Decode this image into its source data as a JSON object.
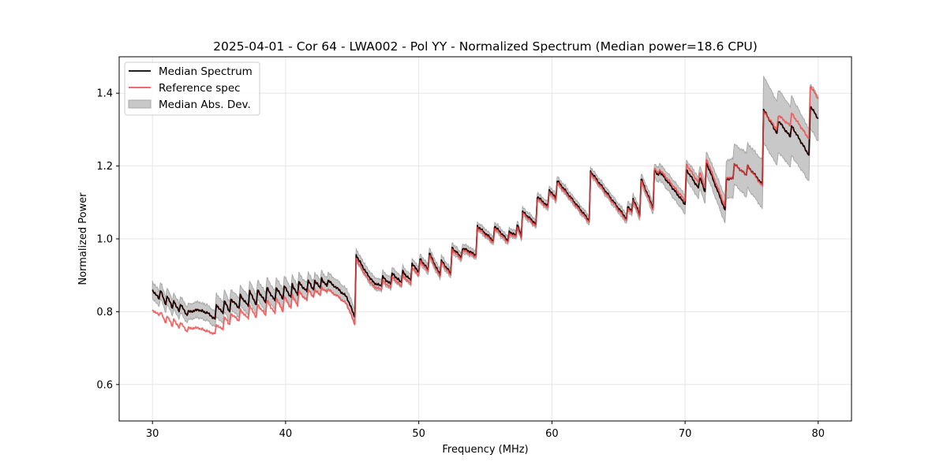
{
  "chart_data": {
    "type": "line",
    "title": "2025-04-01 - Cor 64 - LWA002 - Pol YY - Normalized Spectrum (Median power=18.6 CPU)",
    "xlabel": "Frequency (MHz)",
    "ylabel": "Normalized Power",
    "xlim": [
      27.5,
      82.5
    ],
    "ylim": [
      0.5,
      1.5
    ],
    "xticks": [
      30,
      40,
      50,
      60,
      70,
      80
    ],
    "xtick_labels": [
      "30",
      "40",
      "50",
      "60",
      "70",
      "80"
    ],
    "yticks": [
      0.6,
      0.8,
      1.0,
      1.2,
      1.4
    ],
    "ytick_labels": [
      "0.6",
      "0.8",
      "1.0",
      "1.2",
      "1.4"
    ],
    "grid": true,
    "legend_position": "top-left",
    "legend": [
      {
        "label": "Median Spectrum",
        "type": "line",
        "color": "#000000"
      },
      {
        "label": "Reference spec",
        "type": "line",
        "color": "#ee5555"
      },
      {
        "label": "Median Abs. Dev.",
        "type": "band",
        "color": "#c8c8c8"
      }
    ],
    "colors": {
      "median": "#000000",
      "reference": "#ee5555",
      "mad_fill": "#c8c8c8",
      "mad_edge": "#a8a8a8",
      "overlap": "#8b0000"
    },
    "series": [
      {
        "name": "Median Spectrum",
        "x": [
          30.0,
          30.5,
          30.6,
          31.0,
          31.1,
          31.5,
          31.6,
          32.0,
          32.1,
          32.6,
          32.7,
          33.5,
          34.2,
          34.7,
          34.8,
          35.3,
          35.4,
          35.8,
          35.9,
          36.5,
          36.6,
          37.2,
          37.3,
          37.8,
          37.9,
          38.5,
          38.6,
          39.2,
          39.3,
          39.8,
          39.9,
          40.4,
          40.5,
          40.9,
          41.0,
          41.6,
          41.7,
          42.1,
          42.2,
          42.6,
          42.7,
          43.1,
          43.2,
          44.0,
          44.6,
          45.2,
          45.3,
          46.0,
          46.6,
          47.2,
          47.3,
          47.9,
          48.0,
          48.7,
          48.8,
          49.4,
          49.5,
          50.0,
          50.1,
          50.7,
          50.8,
          51.6,
          51.7,
          52.4,
          52.5,
          53.2,
          53.3,
          54.3,
          54.4,
          55.6,
          55.7,
          56.7,
          56.8,
          57.3,
          57.4,
          57.7,
          57.8,
          58.8,
          58.9,
          59.7,
          59.8,
          60.3,
          60.4,
          62.8,
          62.9,
          65.6,
          65.7,
          66.0,
          66.1,
          66.6,
          66.7,
          67.6,
          67.7,
          68.0,
          68.1,
          70.0,
          70.1,
          71.0,
          71.1,
          71.5,
          71.6,
          73.0,
          73.1,
          73.6,
          73.7,
          74.6,
          74.7,
          75.8,
          75.9,
          76.9,
          77.0,
          77.9,
          78.0,
          79.3,
          79.4,
          80.0
        ],
        "values": [
          0.86,
          0.835,
          0.86,
          0.82,
          0.845,
          0.81,
          0.83,
          0.8,
          0.82,
          0.79,
          0.8,
          0.805,
          0.795,
          0.78,
          0.82,
          0.795,
          0.83,
          0.8,
          0.835,
          0.81,
          0.845,
          0.815,
          0.855,
          0.82,
          0.86,
          0.825,
          0.865,
          0.83,
          0.865,
          0.835,
          0.87,
          0.84,
          0.875,
          0.845,
          0.88,
          0.855,
          0.885,
          0.86,
          0.885,
          0.865,
          0.89,
          0.87,
          0.885,
          0.86,
          0.84,
          0.785,
          0.955,
          0.91,
          0.88,
          0.87,
          0.895,
          0.875,
          0.905,
          0.88,
          0.91,
          0.885,
          0.93,
          0.91,
          0.945,
          0.915,
          0.96,
          0.9,
          0.94,
          0.905,
          0.975,
          0.95,
          0.975,
          0.955,
          1.035,
          0.995,
          1.035,
          0.995,
          1.02,
          1.01,
          1.04,
          1.005,
          1.075,
          1.04,
          1.115,
          1.09,
          1.135,
          1.11,
          1.16,
          1.05,
          1.185,
          1.055,
          1.09,
          1.075,
          1.11,
          1.065,
          1.165,
          1.085,
          1.19,
          1.175,
          1.185,
          1.095,
          1.19,
          1.14,
          1.17,
          1.13,
          1.21,
          1.08,
          1.165,
          1.165,
          1.205,
          1.175,
          1.2,
          1.15,
          1.355,
          1.29,
          1.325,
          1.28,
          1.31,
          1.23,
          1.365,
          1.33
        ],
        "color": "#000000"
      },
      {
        "name": "Reference spec",
        "x": [
          30.0,
          30.5,
          30.6,
          31.0,
          31.1,
          31.5,
          31.6,
          32.0,
          32.1,
          32.6,
          32.7,
          33.5,
          34.2,
          34.7,
          34.8,
          35.3,
          35.4,
          35.8,
          35.9,
          36.5,
          36.6,
          37.2,
          37.3,
          37.8,
          37.9,
          38.5,
          38.6,
          39.2,
          39.3,
          39.8,
          39.9,
          40.4,
          40.5,
          40.9,
          41.0,
          41.6,
          41.7,
          42.1,
          42.2,
          42.6,
          42.7,
          43.1,
          43.2,
          44.0,
          44.6,
          45.2,
          45.3,
          46.0,
          46.6,
          47.2,
          47.3,
          47.9,
          48.0,
          48.7,
          48.8,
          49.4,
          49.5,
          50.0,
          50.1,
          50.7,
          50.8,
          51.6,
          51.7,
          52.4,
          52.5,
          53.2,
          53.3,
          54.3,
          54.4,
          55.6,
          55.7,
          56.7,
          56.8,
          57.3,
          57.4,
          57.7,
          57.8,
          58.8,
          58.9,
          59.7,
          59.8,
          60.3,
          60.4,
          62.8,
          62.9,
          65.6,
          65.7,
          66.0,
          66.1,
          66.6,
          66.7,
          67.6,
          67.7,
          68.0,
          68.1,
          70.0,
          70.1,
          71.0,
          71.1,
          71.5,
          71.6,
          73.0,
          73.1,
          73.6,
          73.7,
          74.6,
          74.7,
          75.8,
          75.9,
          76.9,
          77.0,
          77.9,
          78.0,
          79.3,
          79.4,
          80.0
        ],
        "values": [
          0.805,
          0.79,
          0.8,
          0.77,
          0.79,
          0.76,
          0.78,
          0.755,
          0.77,
          0.745,
          0.755,
          0.755,
          0.745,
          0.74,
          0.765,
          0.75,
          0.785,
          0.765,
          0.795,
          0.775,
          0.805,
          0.78,
          0.815,
          0.785,
          0.82,
          0.79,
          0.83,
          0.795,
          0.835,
          0.8,
          0.84,
          0.81,
          0.845,
          0.815,
          0.855,
          0.83,
          0.86,
          0.84,
          0.86,
          0.845,
          0.865,
          0.855,
          0.86,
          0.84,
          0.82,
          0.765,
          0.945,
          0.9,
          0.87,
          0.86,
          0.885,
          0.865,
          0.895,
          0.87,
          0.9,
          0.875,
          0.92,
          0.9,
          0.94,
          0.91,
          0.955,
          0.895,
          0.935,
          0.9,
          0.97,
          0.945,
          0.97,
          0.95,
          1.03,
          0.99,
          1.03,
          0.99,
          1.015,
          1.005,
          1.035,
          1.0,
          1.07,
          1.035,
          1.11,
          1.085,
          1.13,
          1.105,
          1.155,
          1.045,
          1.18,
          1.05,
          1.085,
          1.07,
          1.105,
          1.06,
          1.16,
          1.08,
          1.195,
          1.18,
          1.19,
          1.105,
          1.205,
          1.155,
          1.185,
          1.14,
          1.22,
          1.09,
          1.17,
          1.165,
          1.205,
          1.175,
          1.2,
          1.145,
          1.35,
          1.3,
          1.34,
          1.31,
          1.345,
          1.275,
          1.42,
          1.385
        ],
        "color": "#ee5555"
      },
      {
        "name": "Median Abs. Dev.",
        "x": [
          30.0,
          31.0,
          32.0,
          32.7,
          33.5,
          34.7,
          34.8,
          36.0,
          38.0,
          40.0,
          42.0,
          43.0,
          44.6,
          45.2,
          45.3,
          46.0,
          48.0,
          50.0,
          52.0,
          54.3,
          54.4,
          57.0,
          60.0,
          62.8,
          62.9,
          65.6,
          65.7,
          67.6,
          67.7,
          68.0,
          68.1,
          70.0,
          70.1,
          71.5,
          71.6,
          73.0,
          73.1,
          75.8,
          75.9,
          77.0,
          78.0,
          79.3,
          79.4,
          80.0
        ],
        "median_abs_dev": [
          0.02,
          0.02,
          0.02,
          0.02,
          0.02,
          0.02,
          0.03,
          0.025,
          0.025,
          0.025,
          0.02,
          0.02,
          0.02,
          0.02,
          0.015,
          0.015,
          0.015,
          0.012,
          0.012,
          0.01,
          0.01,
          0.01,
          0.01,
          0.01,
          0.01,
          0.012,
          0.012,
          0.015,
          0.015,
          0.02,
          0.02,
          0.025,
          0.025,
          0.03,
          0.03,
          0.035,
          0.05,
          0.065,
          0.09,
          0.085,
          0.08,
          0.07,
          0.06,
          0.06
        ],
        "color": "#c8c8c8"
      }
    ]
  }
}
